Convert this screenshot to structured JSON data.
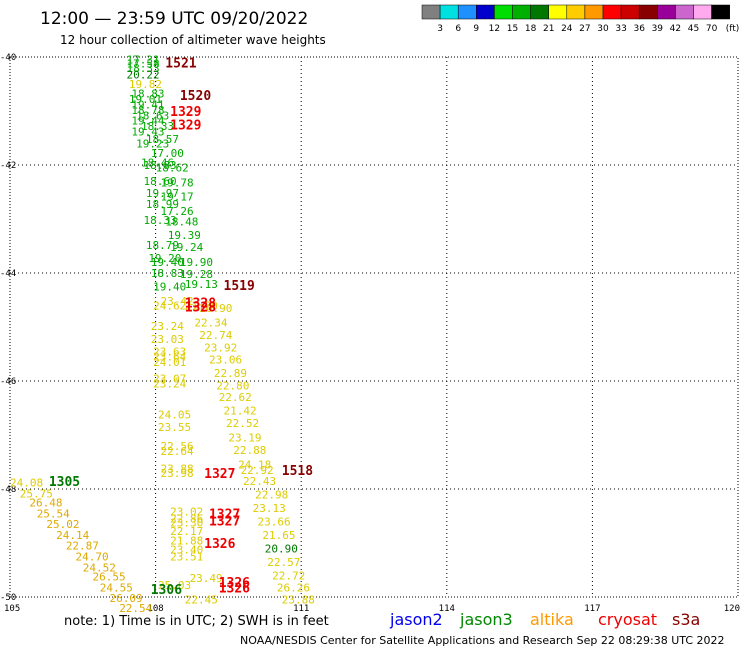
{
  "header": {
    "title": "12:00 — 23:59 UTC 09/20/2022",
    "subtitle": "12 hour collection of altimeter wave heights"
  },
  "colorbar": {
    "labels": [
      "3",
      "6",
      "9",
      "12",
      "15",
      "18",
      "21",
      "24",
      "27",
      "30",
      "33",
      "36",
      "39",
      "42",
      "45",
      "70"
    ],
    "unit": "(ft)",
    "colors": [
      "#808080",
      "#00e0e0",
      "#1e90ff",
      "#0000cc",
      "#00dd00",
      "#00b000",
      "#007700",
      "#ffff00",
      "#ffcc00",
      "#ff9900",
      "#ff0000",
      "#cc0000",
      "#880000",
      "#990099",
      "#cc66cc",
      "#ffaaee",
      "#000000"
    ]
  },
  "footer": {
    "note": "note:  1) Time is in UTC; 2) SWH is in feet",
    "credit": "NOAA/NESDIS Center for Satellite Applications and Research    Sep 22 08:29:38 UTC 2022",
    "satellites": [
      {
        "name": "jason2",
        "color": "#0000ee"
      },
      {
        "name": "jason3",
        "color": "#008800"
      },
      {
        "name": "altika",
        "color": "#ff9900"
      },
      {
        "name": "cryosat",
        "color": "#ee0000"
      },
      {
        "name": "s3a",
        "color": "#880000"
      }
    ]
  },
  "chart_data": {
    "type": "scatter",
    "title": "12:00 — 23:59 UTC 09/20/2022",
    "subtitle": "12 hour collection of altimeter wave heights",
    "xlim": [
      105,
      120
    ],
    "ylim": [
      -50,
      -40
    ],
    "x_ticks": [
      "105",
      "108",
      "111",
      "114",
      "117",
      "120"
    ],
    "y_ticks": [
      "-40",
      "-42",
      "-44",
      "-46",
      "-48",
      "-50"
    ],
    "grid": true,
    "unit": "ft",
    "swh_labels": [
      {
        "lon": 107.4,
        "lat": -40.05,
        "text": "17.31",
        "color": "#00aa00"
      },
      {
        "lon": 107.4,
        "lat": -40.12,
        "text": "17.58",
        "color": "#00aa00"
      },
      {
        "lon": 107.4,
        "lat": -40.2,
        "text": "18.33",
        "color": "#00aa00"
      },
      {
        "lon": 107.4,
        "lat": -40.32,
        "text": "20.22",
        "color": "#007700"
      },
      {
        "lon": 107.45,
        "lat": -40.5,
        "text": "19.82",
        "color": "#ddcc00"
      },
      {
        "lon": 107.5,
        "lat": -40.68,
        "text": "18.83",
        "color": "#00aa00"
      },
      {
        "lon": 107.45,
        "lat": -40.78,
        "text": "19.01",
        "color": "#00aa00"
      },
      {
        "lon": 107.5,
        "lat": -40.88,
        "text": "19.41",
        "color": "#00aa00"
      },
      {
        "lon": 107.5,
        "lat": -40.98,
        "text": "18.78",
        "color": "#00aa00"
      },
      {
        "lon": 107.6,
        "lat": -41.08,
        "text": "18.63",
        "color": "#00aa00"
      },
      {
        "lon": 107.5,
        "lat": -41.18,
        "text": "19.44",
        "color": "#00aa00"
      },
      {
        "lon": 107.7,
        "lat": -41.28,
        "text": "18.33",
        "color": "#00aa00"
      },
      {
        "lon": 107.5,
        "lat": -41.38,
        "text": "19.43",
        "color": "#00aa00"
      },
      {
        "lon": 107.8,
        "lat": -41.52,
        "text": "18.57",
        "color": "#00aa00"
      },
      {
        "lon": 107.6,
        "lat": -41.6,
        "text": "19.23",
        "color": "#00aa00"
      },
      {
        "lon": 107.9,
        "lat": -41.78,
        "text": "17.00",
        "color": "#00aa00"
      },
      {
        "lon": 107.7,
        "lat": -41.95,
        "text": "18.46",
        "color": "#00aa00"
      },
      {
        "lon": 107.75,
        "lat": -42.0,
        "text": "18.83",
        "color": "#00aa00"
      },
      {
        "lon": 108.0,
        "lat": -42.05,
        "text": "18.62",
        "color": "#00aa00"
      },
      {
        "lon": 107.75,
        "lat": -42.3,
        "text": "18.60",
        "color": "#00aa00"
      },
      {
        "lon": 108.1,
        "lat": -42.32,
        "text": "19.78",
        "color": "#00aa00"
      },
      {
        "lon": 107.8,
        "lat": -42.52,
        "text": "19.97",
        "color": "#00aa00"
      },
      {
        "lon": 108.1,
        "lat": -42.58,
        "text": "19.17",
        "color": "#00aa00"
      },
      {
        "lon": 107.8,
        "lat": -42.72,
        "text": "18.99",
        "color": "#00aa00"
      },
      {
        "lon": 108.1,
        "lat": -42.85,
        "text": "17.26",
        "color": "#00aa00"
      },
      {
        "lon": 107.75,
        "lat": -43.02,
        "text": "18.33",
        "color": "#00aa00"
      },
      {
        "lon": 108.2,
        "lat": -43.05,
        "text": "18.48",
        "color": "#00aa00"
      },
      {
        "lon": 108.25,
        "lat": -43.3,
        "text": "19.39",
        "color": "#00aa00"
      },
      {
        "lon": 107.8,
        "lat": -43.48,
        "text": "18.79",
        "color": "#00aa00"
      },
      {
        "lon": 108.3,
        "lat": -43.52,
        "text": "19.24",
        "color": "#00aa00"
      },
      {
        "lon": 107.85,
        "lat": -43.72,
        "text": "19.20",
        "color": "#00aa00"
      },
      {
        "lon": 107.9,
        "lat": -43.8,
        "text": "19.40",
        "color": "#00aa00"
      },
      {
        "lon": 108.5,
        "lat": -43.8,
        "text": "19.90",
        "color": "#00aa00"
      },
      {
        "lon": 107.9,
        "lat": -44.0,
        "text": "18.83",
        "color": "#00aa00"
      },
      {
        "lon": 108.5,
        "lat": -44.02,
        "text": "19.28",
        "color": "#00aa00"
      },
      {
        "lon": 107.95,
        "lat": -44.25,
        "text": "19.40",
        "color": "#00aa00"
      },
      {
        "lon": 108.6,
        "lat": -44.2,
        "text": "19.13",
        "color": "#00aa00"
      },
      {
        "lon": 108.1,
        "lat": -44.52,
        "text": "23.42",
        "color": "#ddcc00"
      },
      {
        "lon": 107.95,
        "lat": -44.6,
        "text": "24.62",
        "color": "#ddcc00"
      },
      {
        "lon": 108.6,
        "lat": -44.6,
        "text": "21.20",
        "color": "#ddcc00"
      },
      {
        "lon": 108.9,
        "lat": -44.65,
        "text": "20.90",
        "color": "#ddcc00"
      },
      {
        "lon": 108.8,
        "lat": -44.92,
        "text": "22.34",
        "color": "#ddcc00"
      },
      {
        "lon": 107.9,
        "lat": -44.98,
        "text": "23.24",
        "color": "#ddcc00"
      },
      {
        "lon": 108.9,
        "lat": -45.15,
        "text": "22.74",
        "color": "#ddcc00"
      },
      {
        "lon": 107.9,
        "lat": -45.22,
        "text": "23.03",
        "color": "#ddcc00"
      },
      {
        "lon": 109.0,
        "lat": -45.38,
        "text": "23.92",
        "color": "#ddcc00"
      },
      {
        "lon": 107.95,
        "lat": -45.45,
        "text": "23.63",
        "color": "#ddcc00"
      },
      {
        "lon": 107.95,
        "lat": -45.55,
        "text": "23.64",
        "color": "#ddcc00"
      },
      {
        "lon": 109.1,
        "lat": -45.6,
        "text": "23.06",
        "color": "#ddcc00"
      },
      {
        "lon": 107.95,
        "lat": -45.65,
        "text": "24.01",
        "color": "#ddcc00"
      },
      {
        "lon": 109.2,
        "lat": -45.85,
        "text": "22.89",
        "color": "#ddcc00"
      },
      {
        "lon": 107.95,
        "lat": -45.95,
        "text": "23.07",
        "color": "#ddcc00"
      },
      {
        "lon": 107.95,
        "lat": -46.05,
        "text": "23.24",
        "color": "#ddcc00"
      },
      {
        "lon": 109.25,
        "lat": -46.08,
        "text": "22.80",
        "color": "#ddcc00"
      },
      {
        "lon": 109.3,
        "lat": -46.3,
        "text": "22.62",
        "color": "#ddcc00"
      },
      {
        "lon": 109.4,
        "lat": -46.55,
        "text": "21.42",
        "color": "#ddcc00"
      },
      {
        "lon": 108.05,
        "lat": -46.62,
        "text": "24.05",
        "color": "#ddcc00"
      },
      {
        "lon": 109.45,
        "lat": -46.78,
        "text": "22.52",
        "color": "#ddcc00"
      },
      {
        "lon": 108.05,
        "lat": -46.85,
        "text": "23.55",
        "color": "#ddcc00"
      },
      {
        "lon": 109.5,
        "lat": -47.05,
        "text": "23.19",
        "color": "#ddcc00"
      },
      {
        "lon": 108.1,
        "lat": -47.2,
        "text": "22.56",
        "color": "#ddcc00"
      },
      {
        "lon": 108.1,
        "lat": -47.3,
        "text": "22.64",
        "color": "#ddcc00"
      },
      {
        "lon": 109.6,
        "lat": -47.28,
        "text": "22.88",
        "color": "#ddcc00"
      },
      {
        "lon": 109.7,
        "lat": -47.55,
        "text": "24.18",
        "color": "#ddcc00"
      },
      {
        "lon": 108.1,
        "lat": -47.62,
        "text": "23.88",
        "color": "#ddcc00"
      },
      {
        "lon": 108.1,
        "lat": -47.7,
        "text": "23.98",
        "color": "#ddcc00"
      },
      {
        "lon": 109.75,
        "lat": -47.65,
        "text": "22.92",
        "color": "#ddcc00"
      },
      {
        "lon": 109.8,
        "lat": -47.85,
        "text": "22.43",
        "color": "#ddcc00"
      },
      {
        "lon": 110.05,
        "lat": -48.1,
        "text": "22.98",
        "color": "#ddcc00"
      },
      {
        "lon": 110.0,
        "lat": -48.35,
        "text": "23.13",
        "color": "#ddcc00"
      },
      {
        "lon": 108.3,
        "lat": -48.42,
        "text": "23.02",
        "color": "#ddcc00"
      },
      {
        "lon": 108.3,
        "lat": -48.55,
        "text": "22.86",
        "color": "#ddcc00"
      },
      {
        "lon": 108.3,
        "lat": -48.62,
        "text": "23.30",
        "color": "#ddcc00"
      },
      {
        "lon": 110.1,
        "lat": -48.6,
        "text": "23.66",
        "color": "#ddcc00"
      },
      {
        "lon": 108.3,
        "lat": -48.78,
        "text": "22.17",
        "color": "#ddcc00"
      },
      {
        "lon": 110.2,
        "lat": -48.85,
        "text": "21.65",
        "color": "#ddcc00"
      },
      {
        "lon": 108.3,
        "lat": -48.95,
        "text": "21.88",
        "color": "#ddcc00"
      },
      {
        "lon": 110.25,
        "lat": -49.1,
        "text": "20.90",
        "color": "#007700"
      },
      {
        "lon": 108.3,
        "lat": -49.12,
        "text": "23.40",
        "color": "#ddcc00"
      },
      {
        "lon": 108.3,
        "lat": -49.25,
        "text": "23.51",
        "color": "#ddcc00"
      },
      {
        "lon": 110.3,
        "lat": -49.35,
        "text": "22.57",
        "color": "#ddcc00"
      },
      {
        "lon": 110.4,
        "lat": -49.6,
        "text": "22.72",
        "color": "#ddcc00"
      },
      {
        "lon": 108.7,
        "lat": -49.65,
        "text": "23.49",
        "color": "#ddcc00"
      },
      {
        "lon": 108.05,
        "lat": -49.78,
        "text": "25.03",
        "color": "#ddcc00"
      },
      {
        "lon": 110.5,
        "lat": -49.82,
        "text": "26.26",
        "color": "#ddcc00"
      },
      {
        "lon": 108.6,
        "lat": -50.05,
        "text": "22.45",
        "color": "#ddcc00"
      },
      {
        "lon": 110.6,
        "lat": -50.05,
        "text": "23.88",
        "color": "#ddcc00"
      },
      {
        "lon": 105.0,
        "lat": -47.88,
        "text": "24.08",
        "color": "#ddcc00"
      },
      {
        "lon": 105.2,
        "lat": -48.08,
        "text": "25.75",
        "color": "#ddcc00"
      },
      {
        "lon": 105.4,
        "lat": -48.25,
        "text": "26.48",
        "color": "#ddaa00"
      },
      {
        "lon": 105.55,
        "lat": -48.45,
        "text": "25.54",
        "color": "#ddaa00"
      },
      {
        "lon": 105.75,
        "lat": -48.65,
        "text": "25.02",
        "color": "#ddaa00"
      },
      {
        "lon": 105.95,
        "lat": -48.85,
        "text": "24.14",
        "color": "#ddaa00"
      },
      {
        "lon": 106.15,
        "lat": -49.05,
        "text": "22.87",
        "color": "#ddaa00"
      },
      {
        "lon": 106.35,
        "lat": -49.25,
        "text": "24.70",
        "color": "#ddaa00"
      },
      {
        "lon": 106.5,
        "lat": -49.45,
        "text": "24.52",
        "color": "#ddaa00"
      },
      {
        "lon": 106.7,
        "lat": -49.62,
        "text": "26.55",
        "color": "#ddaa00"
      },
      {
        "lon": 106.85,
        "lat": -49.82,
        "text": "24.55",
        "color": "#ddaa00"
      },
      {
        "lon": 107.05,
        "lat": -50.02,
        "text": "26.09",
        "color": "#ddaa00"
      },
      {
        "lon": 107.25,
        "lat": -50.2,
        "text": "22.54",
        "color": "#ddaa00"
      }
    ],
    "pass_labels": [
      {
        "lon": 108.2,
        "lat": -40.1,
        "text": "1521",
        "color": "#880000"
      },
      {
        "lon": 108.5,
        "lat": -40.7,
        "text": "1520",
        "color": "#880000"
      },
      {
        "lon": 108.3,
        "lat": -41.0,
        "text": "1329",
        "color": "#ee0000"
      },
      {
        "lon": 108.3,
        "lat": -41.25,
        "text": "1329",
        "color": "#ee0000"
      },
      {
        "lon": 109.4,
        "lat": -44.22,
        "text": "1519",
        "color": "#880000"
      },
      {
        "lon": 108.6,
        "lat": -44.55,
        "text": "1328",
        "color": "#ee0000"
      },
      {
        "lon": 108.6,
        "lat": -44.62,
        "text": "1328",
        "color": "#ee0000"
      },
      {
        "lon": 110.6,
        "lat": -47.65,
        "text": "1518",
        "color": "#880000"
      },
      {
        "lon": 109.0,
        "lat": -47.7,
        "text": "1327",
        "color": "#ee0000"
      },
      {
        "lon": 109.1,
        "lat": -48.45,
        "text": "1327",
        "color": "#ee0000"
      },
      {
        "lon": 109.1,
        "lat": -48.58,
        "text": "1327",
        "color": "#ee0000"
      },
      {
        "lon": 109.0,
        "lat": -49.0,
        "text": "1326",
        "color": "#ee0000"
      },
      {
        "lon": 109.3,
        "lat": -49.72,
        "text": "1326",
        "color": "#ee0000"
      },
      {
        "lon": 109.3,
        "lat": -49.82,
        "text": "1326",
        "color": "#ee0000"
      },
      {
        "lon": 105.8,
        "lat": -47.85,
        "text": "1305",
        "color": "#007700"
      },
      {
        "lon": 107.9,
        "lat": -49.85,
        "text": "1306",
        "color": "#007700"
      }
    ]
  }
}
